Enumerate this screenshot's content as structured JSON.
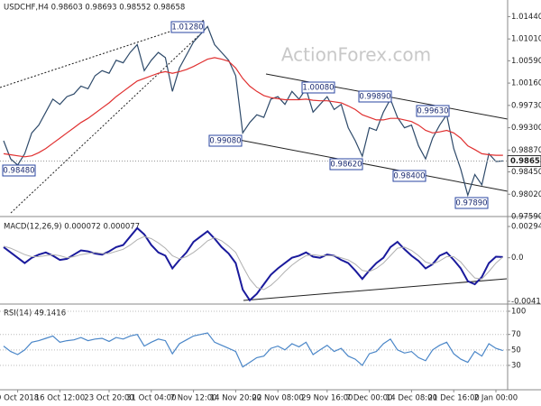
{
  "chart_data": [
    {
      "type": "line",
      "title": "USDCHF,H4  0.98603 0.98693 0.98552 0.98658",
      "watermark": "ActionForex.com",
      "series": [
        {
          "color": "#2e4a6a",
          "values": [
            0.9905,
            0.987,
            0.9858,
            0.988,
            0.992,
            0.9935,
            0.996,
            0.9985,
            0.9975,
            0.999,
            0.9995,
            1.001,
            1.0005,
            1.003,
            1.004,
            1.0035,
            1.006,
            1.0055,
            1.0075,
            1.009,
            1.004,
            1.006,
            1.0075,
            1.0065,
            1.0,
            1.0045,
            1.007,
            1.0095,
            1.011,
            1.0125,
            1.009,
            1.0075,
            1.006,
            1.003,
            0.992,
            0.994,
            0.9955,
            0.995,
            0.9985,
            0.999,
            0.9975,
            1.0,
            0.9985,
            1.0005,
            0.996,
            0.9975,
            0.999,
            0.9965,
            0.9975,
            0.993,
            0.9905,
            0.9875,
            0.993,
            0.9925,
            0.996,
            0.9985,
            0.995,
            0.993,
            0.9935,
            0.9895,
            0.987,
            0.991,
            0.9935,
            0.9955,
            0.989,
            0.985,
            0.98,
            0.984,
            0.982,
            0.988,
            0.9865,
            0.9866
          ]
        },
        {
          "color": "#e03030",
          "values": [
            0.988,
            0.9878,
            0.9876,
            0.9874,
            0.9876,
            0.9882,
            0.989,
            0.99,
            0.991,
            0.992,
            0.993,
            0.994,
            0.9948,
            0.9958,
            0.9968,
            0.9978,
            0.999,
            1.0,
            1.001,
            1.002,
            1.0025,
            1.003,
            1.0035,
            1.0038,
            1.0035,
            1.0038,
            1.0042,
            1.0048,
            1.0055,
            1.0062,
            1.0065,
            1.0062,
            1.0058,
            1.0045,
            1.0025,
            1.001,
            1.0,
            0.9992,
            0.9988,
            0.9986,
            0.9984,
            0.9984,
            0.9984,
            0.9985,
            0.9983,
            0.9982,
            0.9982,
            0.998,
            0.9978,
            0.9972,
            0.9965,
            0.9955,
            0.995,
            0.9945,
            0.9945,
            0.9948,
            0.9948,
            0.9945,
            0.9942,
            0.9935,
            0.9925,
            0.992,
            0.9922,
            0.9925,
            0.992,
            0.991,
            0.9895,
            0.9888,
            0.988,
            0.9878,
            0.9877,
            0.9877
          ]
        }
      ],
      "current_price": 0.98658,
      "annotations": [
        "1.01280",
        "1.00080",
        "0.99890",
        "0.99630",
        "0.99080",
        "0.98620",
        "0.98480",
        "0.98400",
        "0.97890"
      ],
      "ylim": [
        0.9759,
        1.0176
      ],
      "yticks": [
        {
          "value": 1.0144,
          "label": "1.01440"
        },
        {
          "value": 1.0101,
          "label": "1.01010"
        },
        {
          "value": 1.0059,
          "label": "1.00590"
        },
        {
          "value": 1.0016,
          "label": "1.00160"
        },
        {
          "value": 0.9973,
          "label": "0.99730"
        },
        {
          "value": 0.993,
          "label": "0.99300"
        },
        {
          "value": 0.9887,
          "label": "0.98870"
        },
        {
          "value": 0.9845,
          "label": "0.98450"
        },
        {
          "value": 0.9802,
          "label": "0.98020"
        },
        {
          "value": 0.9759,
          "label": "0.97590"
        }
      ]
    },
    {
      "type": "line",
      "title": "MACD(12,26,9) 0.000072 0.000077",
      "series": [
        {
          "color": "#1a1a9c",
          "width": 2,
          "values": [
            0.001,
            0.0005,
            0.0,
            -0.0005,
            0.0,
            0.0003,
            0.0005,
            0.0002,
            -0.0002,
            -0.0001,
            0.0003,
            0.0007,
            0.0006,
            0.0004,
            0.0003,
            0.0006,
            0.001,
            0.0012,
            0.002,
            0.0028,
            0.0022,
            0.0012,
            0.0005,
            0.0002,
            -0.001,
            -0.0002,
            0.0005,
            0.0015,
            0.002,
            0.0025,
            0.0018,
            0.001,
            0.0004,
            -0.0005,
            -0.003,
            -0.004,
            -0.0034,
            -0.0025,
            -0.0016,
            -0.001,
            -0.0005,
            0.0,
            0.0002,
            0.0005,
            0.0001,
            0.0,
            0.0003,
            0.0002,
            -0.0002,
            -0.0005,
            -0.0012,
            -0.002,
            -0.0012,
            -0.0005,
            0.0,
            0.001,
            0.0015,
            0.0008,
            0.0002,
            -0.0003,
            -0.001,
            -0.0006,
            0.0002,
            0.0005,
            -0.0002,
            -0.001,
            -0.0022,
            -0.0025,
            -0.0018,
            -0.0005,
            0.0001,
            7.2e-05
          ]
        },
        {
          "color": "#b0b0b0",
          "width": 1,
          "values": [
            0.0011,
            0.0009,
            0.0006,
            0.0003,
            0.0001,
            0.0001,
            0.0002,
            0.0003,
            0.0002,
            0.0,
            0.0001,
            0.0003,
            0.0004,
            0.0005,
            0.0004,
            0.0004,
            0.0006,
            0.0008,
            0.0012,
            0.0017,
            0.002,
            0.0018,
            0.0014,
            0.0009,
            0.0002,
            -0.0001,
            0.0001,
            0.0005,
            0.001,
            0.0016,
            0.0019,
            0.0016,
            0.0011,
            0.0005,
            -0.0008,
            -0.002,
            -0.0028,
            -0.003,
            -0.0026,
            -0.002,
            -0.0013,
            -0.0007,
            -0.0002,
            0.0002,
            0.0003,
            0.0002,
            0.0002,
            0.0002,
            0.0,
            -0.0002,
            -0.0006,
            -0.0012,
            -0.0013,
            -0.001,
            -0.0005,
            0.0002,
            0.0009,
            0.001,
            0.0007,
            0.0002,
            -0.0004,
            -0.0006,
            -0.0003,
            0.0001,
            0.0001,
            -0.0004,
            -0.0012,
            -0.0019,
            -0.002,
            -0.0013,
            -0.0005,
            7.7e-05
          ]
        }
      ],
      "ylim": [
        -0.00436,
        0.00363
      ],
      "yticks": [
        0.002946,
        {
          "value": 0,
          "label": "0.0"
        },
        -0.004104
      ]
    },
    {
      "type": "line",
      "title": "RSI(14) 49.1416",
      "categories": [
        null,
        null,
        "9 Oct 2018",
        null,
        null,
        null,
        null,
        null,
        "16 Oct 12:00",
        null,
        null,
        null,
        null,
        null,
        null,
        "23 Oct 20:00",
        null,
        null,
        null,
        null,
        null,
        "31 Oct 04:00",
        null,
        null,
        null,
        null,
        null,
        "7 Nov 12:00",
        null,
        null,
        null,
        null,
        null,
        "14 Nov 20:00",
        null,
        null,
        null,
        null,
        null,
        "22 Nov 08:00",
        null,
        null,
        null,
        null,
        null,
        null,
        "29 Nov 16:00",
        null,
        null,
        null,
        null,
        null,
        "7 Dec 00:00",
        null,
        null,
        null,
        null,
        null,
        "14 Dec 08:00",
        null,
        null,
        null,
        null,
        null,
        "21 Dec 16:00",
        null,
        null,
        null,
        null,
        null,
        "2 Jan 00:00",
        null
      ],
      "series": [
        {
          "color": "#4a86c8",
          "values": [
            55,
            48,
            44,
            50,
            60,
            62,
            65,
            68,
            60,
            62,
            63,
            66,
            62,
            64,
            65,
            61,
            66,
            64,
            68,
            70,
            55,
            60,
            64,
            62,
            45,
            58,
            63,
            68,
            70,
            72,
            60,
            56,
            52,
            48,
            28,
            34,
            40,
            42,
            52,
            55,
            50,
            58,
            54,
            60,
            44,
            50,
            56,
            48,
            52,
            42,
            38,
            30,
            45,
            48,
            58,
            64,
            50,
            46,
            48,
            40,
            36,
            50,
            56,
            60,
            45,
            38,
            34,
            48,
            42,
            58,
            52,
            49.1416
          ]
        }
      ],
      "ylim": [
        -1.5,
        105.8
      ],
      "yticks": [
        100,
        70,
        50,
        30
      ],
      "grid": true
    }
  ]
}
